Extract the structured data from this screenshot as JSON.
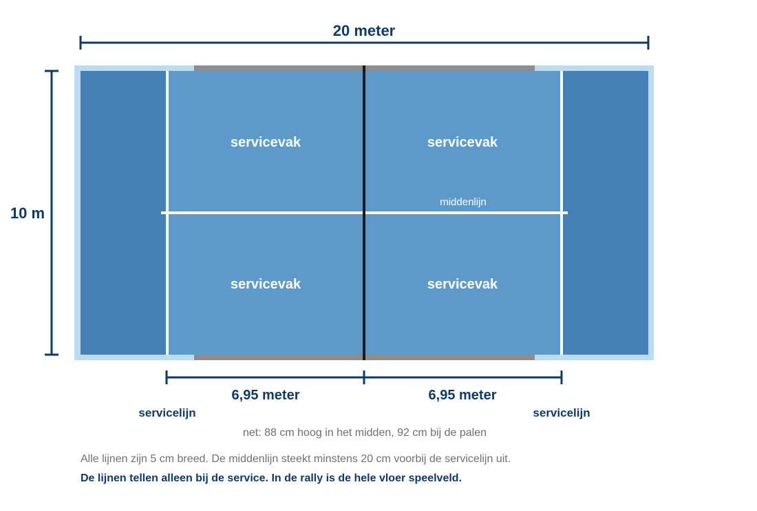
{
  "colors": {
    "outer_frame": "#bcdcf2",
    "back_zone": "#4681b6",
    "service_box": "#5b9acb",
    "net_posts_band": "#8c8c8c",
    "court_lines": "#ffffff",
    "net_line": "#1a1a1a",
    "dimension_navy": "#0e3a68",
    "note_gray": "#6e6e6e"
  },
  "dimensions": {
    "total_length": "20 meter",
    "width": "10 m",
    "left_service_depth": "6,95 meter",
    "right_service_depth": "6,95 meter"
  },
  "court": {
    "service_boxes": [
      {
        "label": "servicevak"
      },
      {
        "label": "servicevak"
      },
      {
        "label": "servicevak"
      },
      {
        "label": "servicevak"
      }
    ],
    "center_line_label": "middenlijn",
    "service_line_labels": [
      "servicelijn",
      "servicelijn"
    ]
  },
  "notes": {
    "net": "net: 88 cm hoog in het midden, 92 cm bij de palen",
    "lines": "Alle lijnen zijn 5 cm breed. De middenlijn steekt minstens 20 cm voorbij de servicelijn uit.",
    "rally": "De lijnen tellen alleen bij de service. In de rally is de hele vloer speelveld."
  }
}
